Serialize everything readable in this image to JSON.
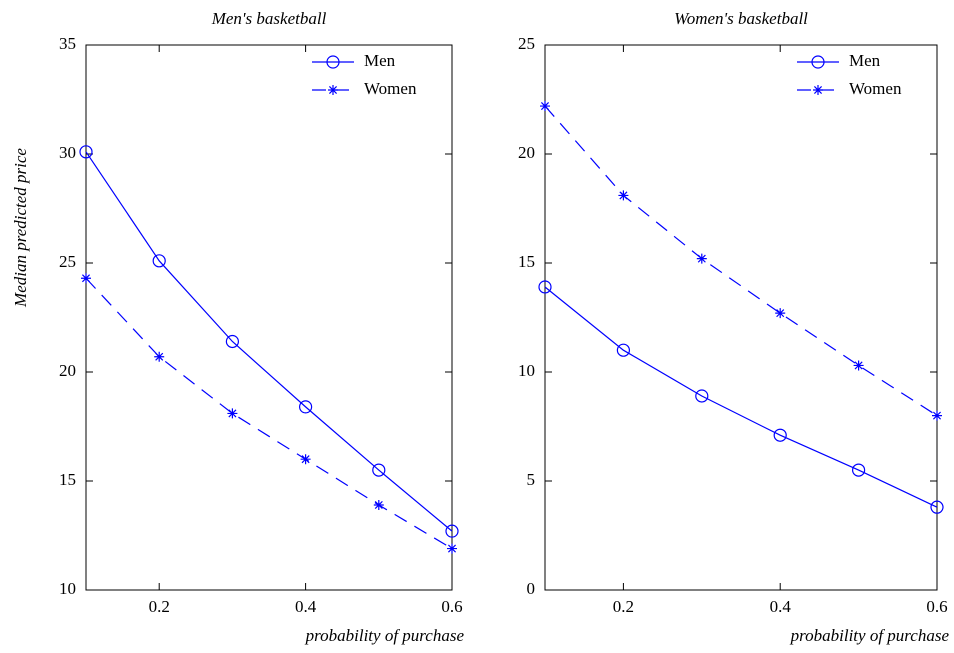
{
  "chart_data": [
    {
      "type": "line",
      "title": "Men's basketball",
      "xlabel": "probability of purchase",
      "ylabel": "Median predicted price",
      "x": [
        0.1,
        0.2,
        0.3,
        0.4,
        0.5,
        0.6
      ],
      "xlim": [
        0.1,
        0.6
      ],
      "xticks": [
        0.2,
        0.4,
        0.6
      ],
      "ylim": [
        10,
        35
      ],
      "yticks": [
        10,
        15,
        20,
        25,
        30,
        35
      ],
      "legend": "upper right",
      "series": [
        {
          "name": "Men",
          "color": "#0000ff",
          "marker": "o",
          "linestyle": "solid",
          "values": [
            30.1,
            25.1,
            21.4,
            18.4,
            15.5,
            12.7
          ]
        },
        {
          "name": "Women",
          "color": "#0000ff",
          "marker": "*",
          "linestyle": "dashed",
          "values": [
            24.3,
            20.7,
            18.1,
            16.0,
            13.9,
            11.9
          ]
        }
      ]
    },
    {
      "type": "line",
      "title": "Women's basketball",
      "xlabel": "probability of purchase",
      "x": [
        0.1,
        0.2,
        0.3,
        0.4,
        0.5,
        0.6
      ],
      "xlim": [
        0.1,
        0.6
      ],
      "xticks": [
        0.2,
        0.4,
        0.6
      ],
      "ylim": [
        0,
        25
      ],
      "yticks": [
        0,
        5,
        10,
        15,
        20,
        25
      ],
      "legend": "upper right",
      "series": [
        {
          "name": "Men",
          "color": "#0000ff",
          "marker": "o",
          "linestyle": "solid",
          "values": [
            13.9,
            11.0,
            8.9,
            7.1,
            5.5,
            3.8
          ]
        },
        {
          "name": "Women",
          "color": "#0000ff",
          "marker": "*",
          "linestyle": "dashed",
          "values": [
            22.2,
            18.1,
            15.2,
            12.7,
            10.3,
            8.0
          ]
        }
      ]
    }
  ]
}
